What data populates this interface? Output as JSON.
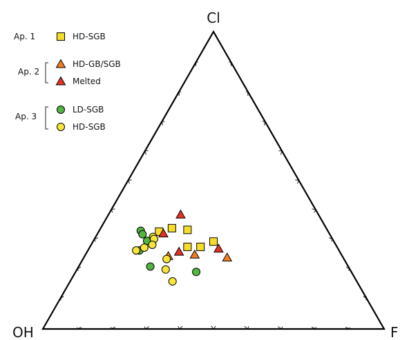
{
  "chart_data": {
    "type": "scatter",
    "subtype": "ternary",
    "vertices": {
      "top": "Cl",
      "left": "OH",
      "right": "F"
    },
    "tick_divisions": 10,
    "grid": false,
    "legend": {
      "placement": "top-left",
      "groups": [
        {
          "label": "Ap. 1",
          "entries": [
            {
              "label": "HD-SGB",
              "series": 0
            }
          ]
        },
        {
          "label": "Ap. 2",
          "entries": [
            {
              "label": "HD-GB/SGB",
              "series": 1
            },
            {
              "label": "Melted",
              "series": 2
            }
          ]
        },
        {
          "label": "Ap. 3",
          "entries": [
            {
              "label": "LD-SGB",
              "series": 3
            },
            {
              "label": "HD-SGB",
              "series": 4
            }
          ]
        }
      ]
    },
    "series": [
      {
        "name": "HD-SGB",
        "group": "Ap. 1",
        "marker": "square",
        "color": "#f5dd2a",
        "points": [
          {
            "OH": 0.56,
            "F": 0.2,
            "Cl": 0.37
          },
          {
            "OH": 0.52,
            "F": 0.24,
            "Cl": 0.39
          },
          {
            "OH": 0.43,
            "F": 0.27,
            "Cl": 0.35
          },
          {
            "OH": 0.46,
            "F": 0.3,
            "Cl": 0.29
          },
          {
            "OH": 0.42,
            "F": 0.34,
            "Cl": 0.29
          },
          {
            "OH": 0.36,
            "F": 0.36,
            "Cl": 0.3
          }
        ]
      },
      {
        "name": "HD-GB/SGB",
        "group": "Ap. 2",
        "marker": "triangle",
        "color": "#f07f22",
        "points": [
          {
            "OH": 0.52,
            "F": 0.25,
            "Cl": 0.25
          },
          {
            "OH": 0.43,
            "F": 0.32,
            "Cl": 0.25
          },
          {
            "OH": 0.34,
            "F": 0.42,
            "Cl": 0.24
          }
        ]
      },
      {
        "name": "Melted",
        "group": "Ap. 2",
        "marker": "triangle",
        "color": "#e53226",
        "points": [
          {
            "OH": 0.42,
            "F": 0.22,
            "Cl": 0.4
          },
          {
            "OH": 0.53,
            "F": 0.21,
            "Cl": 0.35
          },
          {
            "OH": 0.49,
            "F": 0.28,
            "Cl": 0.27
          },
          {
            "OH": 0.35,
            "F": 0.38,
            "Cl": 0.27
          }
        ]
      },
      {
        "name": "LD-SGB",
        "group": "Ap. 3",
        "marker": "circle",
        "color": "#52b540",
        "points": [
          {
            "OH": 0.63,
            "F": 0.14,
            "Cl": 0.38
          },
          {
            "OH": 0.62,
            "F": 0.15,
            "Cl": 0.36
          },
          {
            "OH": 0.59,
            "F": 0.17,
            "Cl": 0.32
          },
          {
            "OH": 0.62,
            "F": 0.16,
            "Cl": 0.28
          },
          {
            "OH": 0.58,
            "F": 0.21,
            "Cl": 0.21
          },
          {
            "OH": 0.45,
            "F": 0.35,
            "Cl": 0.19
          }
        ]
      },
      {
        "name": "HD-SGB",
        "group": "Ap. 3",
        "marker": "circle",
        "color": "#f7e53a",
        "points": [
          {
            "OH": 0.59,
            "F": 0.19,
            "Cl": 0.35
          },
          {
            "OH": 0.57,
            "F": 0.19,
            "Cl": 0.33
          },
          {
            "OH": 0.57,
            "F": 0.19,
            "Cl": 0.3
          },
          {
            "OH": 0.6,
            "F": 0.17,
            "Cl": 0.29
          },
          {
            "OH": 0.63,
            "F": 0.15,
            "Cl": 0.28
          },
          {
            "OH": 0.53,
            "F": 0.25,
            "Cl": 0.24
          },
          {
            "OH": 0.54,
            "F": 0.26,
            "Cl": 0.2
          },
          {
            "OH": 0.54,
            "F": 0.3,
            "Cl": 0.16
          }
        ]
      }
    ]
  }
}
